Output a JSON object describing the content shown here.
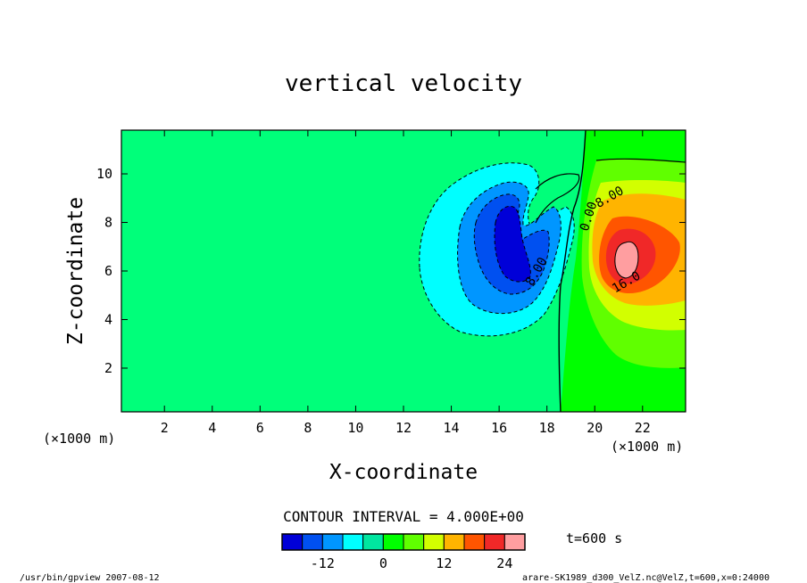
{
  "chart_data": {
    "type": "heatmap",
    "title": "vertical velocity",
    "xlabel": "X-coordinate",
    "ylabel": "Z-coordinate",
    "x_unit_left": "(×1000 m)",
    "x_unit_right": "(×1000 m)",
    "xlim": [
      0.2,
      23.8
    ],
    "ylim": [
      0.2,
      11.8
    ],
    "x_ticks": [
      2,
      4,
      6,
      8,
      10,
      12,
      14,
      16,
      18,
      20,
      22
    ],
    "y_ticks": [
      2,
      4,
      6,
      8,
      10
    ],
    "contour_interval_text": "CONTOUR INTERVAL = 4.000E+00",
    "time_text": "t=600 s",
    "contour_labels": [
      {
        "text": "0.00",
        "x": 19.9,
        "y": 8.2,
        "rotate": -72
      },
      {
        "text": "8.00",
        "x": 20.7,
        "y": 8.9,
        "rotate": -30
      },
      {
        "text": "16.0",
        "x": 21.4,
        "y": 5.4,
        "rotate": -30
      },
      {
        "text": "8.00",
        "x": 17.7,
        "y": 5.9,
        "rotate": -60
      }
    ],
    "colorbar": {
      "colors": [
        "#0000d8",
        "#0050f0",
        "#0096ff",
        "#00ffff",
        "#00e6a0",
        "#00ff00",
        "#60ff00",
        "#d2ff00",
        "#ffb400",
        "#ff5500",
        "#f02828",
        "#ff9ea0"
      ],
      "ticks": [
        {
          "label": "-12",
          "pos": 2
        },
        {
          "label": "0",
          "pos": 5
        },
        {
          "label": "12",
          "pos": 8
        },
        {
          "label": "24",
          "pos": 11
        }
      ]
    },
    "field_regions": [
      {
        "value": 0,
        "color": "#00ff7a",
        "shape": "background"
      },
      {
        "value": -4,
        "color": "#00ffff",
        "shape": "downdraft"
      },
      {
        "value": -8,
        "color": "#0096ff",
        "shape": "downdraft"
      },
      {
        "value": -12,
        "color": "#0050f0",
        "shape": "downdraft"
      },
      {
        "value": -16,
        "color": "#0000d8",
        "shape": "downdraft"
      },
      {
        "value": 2,
        "color": "#00ff00",
        "shape": "updraft"
      },
      {
        "value": 6,
        "color": "#60ff00",
        "shape": "updraft"
      },
      {
        "value": 10,
        "color": "#d2ff00",
        "shape": "updraft"
      },
      {
        "value": 14,
        "color": "#ffb400",
        "shape": "updraft"
      },
      {
        "value": 18,
        "color": "#ff5500",
        "shape": "updraft"
      },
      {
        "value": 22,
        "color": "#f02828",
        "shape": "updraft"
      },
      {
        "value": 26,
        "color": "#ff9ea0",
        "shape": "updraft"
      }
    ]
  },
  "footer": {
    "left": "/usr/bin/gpview  2007-08-12",
    "right": "arare-SK1989_d300_VelZ.nc@VelZ,t=600,x=0:24000"
  }
}
